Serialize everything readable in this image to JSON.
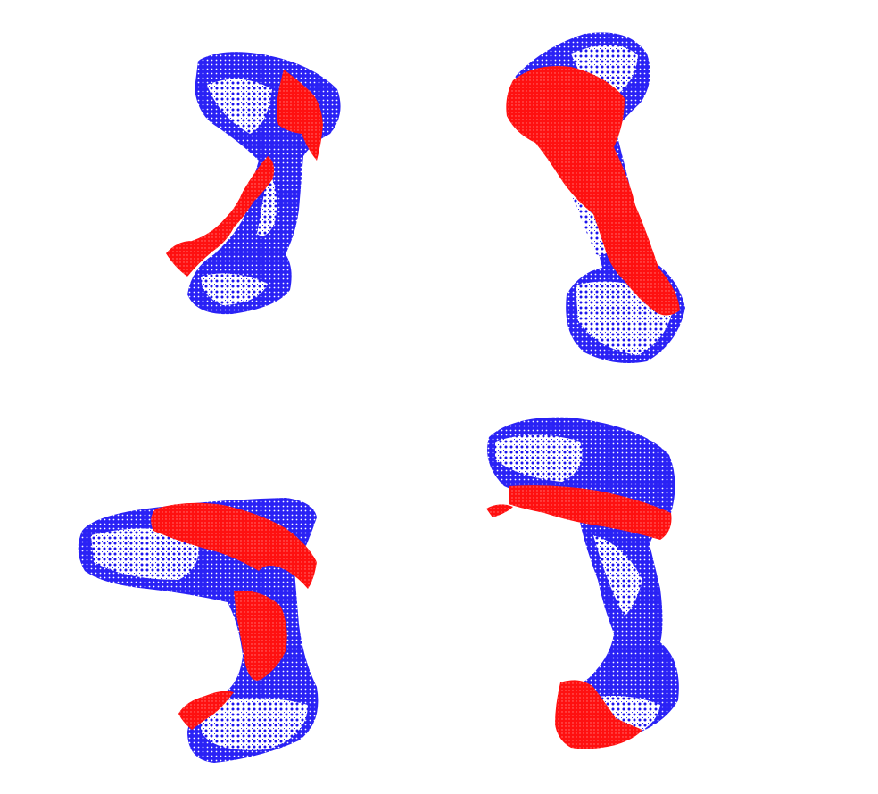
{
  "figure": {
    "background": "#ffffff",
    "model_color": "#1a12ee",
    "partial_scan_color": "#ff1010",
    "panels": [
      {
        "id": "top-left",
        "content": "point-cloud-registration-view"
      },
      {
        "id": "top-right",
        "content": "point-cloud-registration-view"
      },
      {
        "id": "bottom-left",
        "content": "point-cloud-registration-view"
      },
      {
        "id": "bottom-right",
        "content": "point-cloud-registration-view"
      }
    ]
  }
}
